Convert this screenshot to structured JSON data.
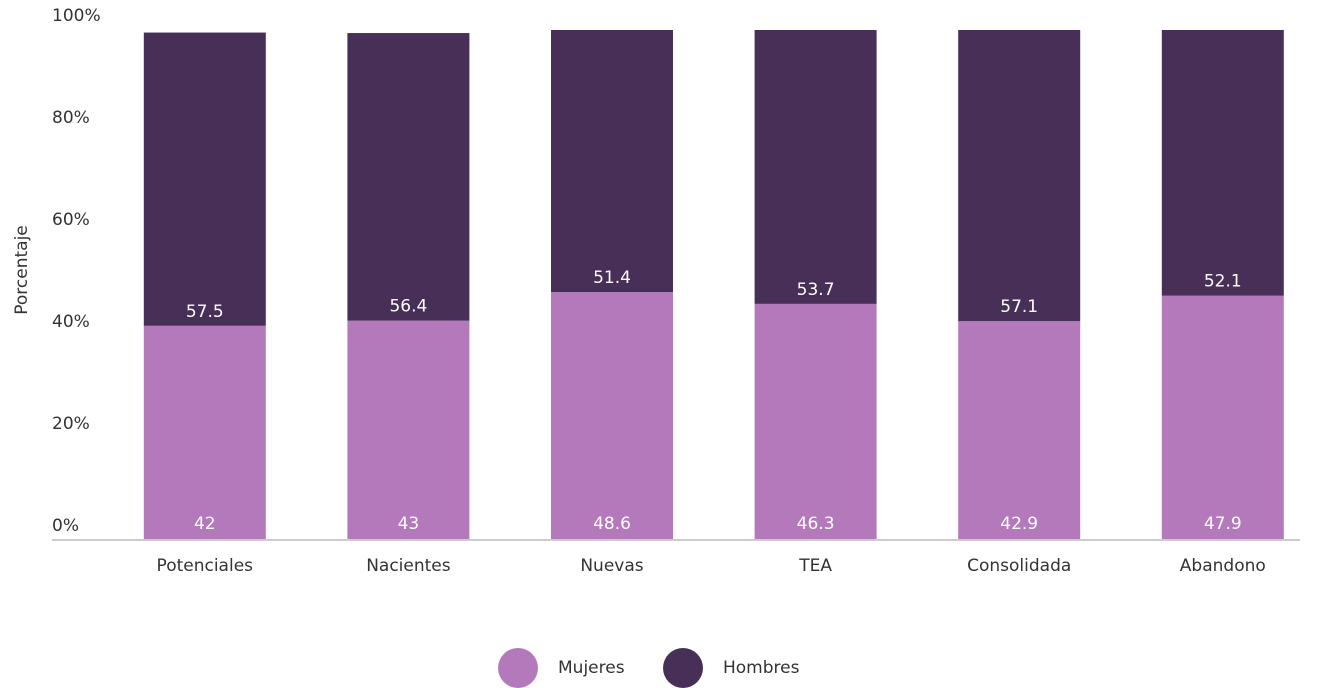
{
  "chart_data": {
    "type": "stacked_bar",
    "y_label": "Porcentaje",
    "categories": [
      "Potenciales",
      "Nacientes",
      "Nuevas",
      "TEA",
      "Consolidada",
      "Abandono"
    ],
    "series": [
      {
        "name": "Mujeres",
        "color": "#b479bb",
        "values": [
          42,
          43,
          48.6,
          46.3,
          42.9,
          47.9
        ]
      },
      {
        "name": "Hombres",
        "color": "#472f57",
        "values": [
          57.5,
          56.4,
          51.4,
          53.7,
          57.1,
          52.1
        ]
      }
    ],
    "ylim": [
      0,
      100
    ],
    "yticks": [
      {
        "value": 0,
        "label": "0%"
      },
      {
        "value": 20,
        "label": "20%"
      },
      {
        "value": 40,
        "label": "40%"
      },
      {
        "value": 60,
        "label": "60%"
      },
      {
        "value": 80,
        "label": "80%"
      },
      {
        "value": 100,
        "label": "100%"
      }
    ],
    "grid": false,
    "legend": "bottom"
  }
}
